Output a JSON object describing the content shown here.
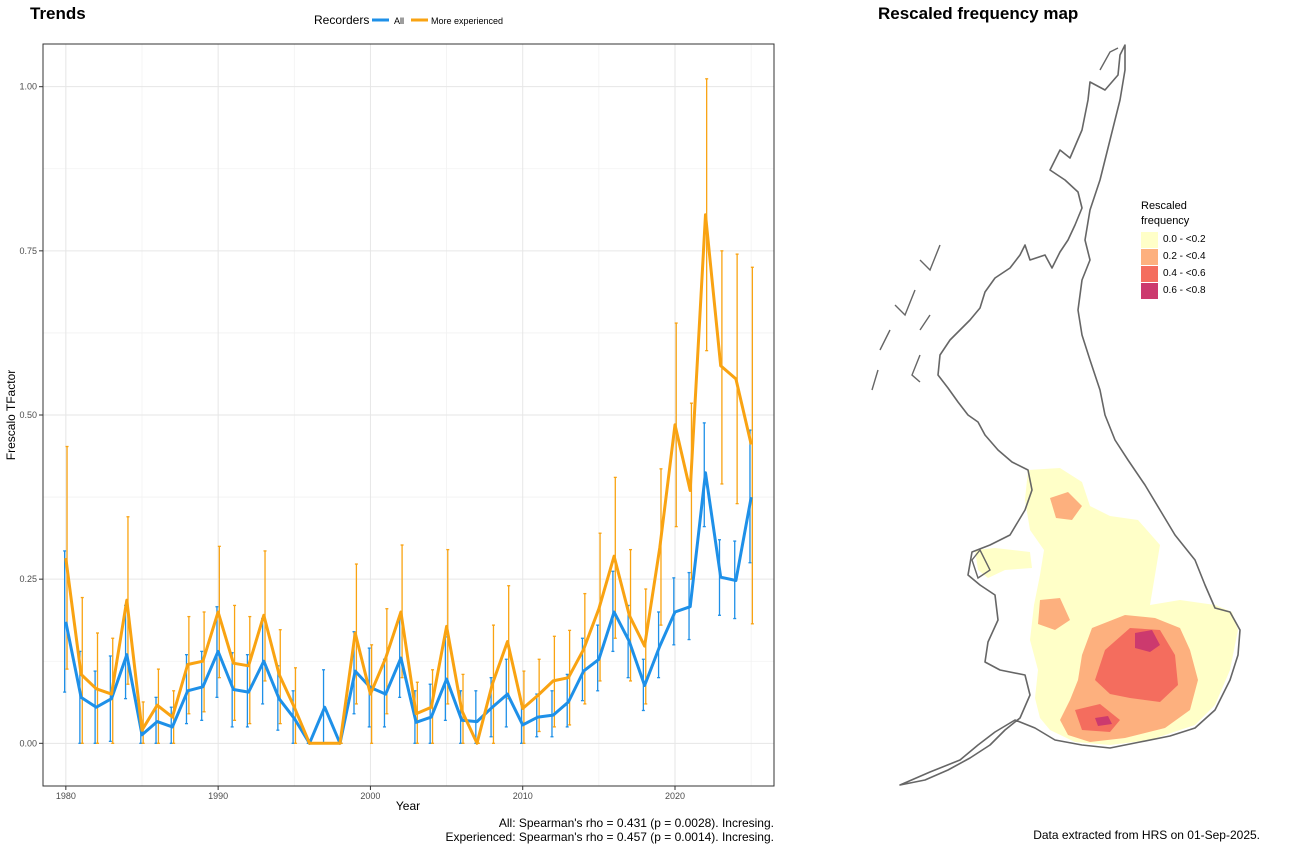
{
  "trends_panel": {
    "title": "Trends"
  },
  "map_panel": {
    "title": "Rescaled frequency map",
    "legend": {
      "title_line1": "Rescaled",
      "title_line2": "frequency",
      "items": [
        {
          "label": "0.0 - <0.2",
          "color": "#FFFFC8"
        },
        {
          "label": "0.2 - <0.4",
          "color": "#FDB07E"
        },
        {
          "label": "0.4 - <0.6",
          "color": "#F46D5E"
        },
        {
          "label": "0.6 - <0.8",
          "color": "#CC3A6E"
        }
      ]
    },
    "footer": "Data extracted from HRS on 01-Sep-2025."
  },
  "stats": {
    "all": "All: Spearman's rho = 0.431 (p = 0.0028). Incresing.",
    "experienced": "Experienced: Spearman's rho = 0.457 (p = 0.0014). Incresing."
  },
  "chart_data": {
    "type": "line",
    "title": "",
    "xlabel": "Year",
    "ylabel": "Frescalo TFactor",
    "xlim": [
      1978.5,
      2026.5
    ],
    "ylim": [
      -0.065,
      1.065
    ],
    "x_ticks": [
      1980,
      1990,
      2000,
      2010,
      2020
    ],
    "y_ticks": [
      0.0,
      0.25,
      0.5,
      0.75,
      1.0
    ],
    "y_tick_labels": [
      "0.00",
      "0.25",
      "0.50",
      "0.75",
      "1.00"
    ],
    "grid": true,
    "legend": {
      "title": "Recorders",
      "position": "top"
    },
    "x": [
      1980,
      1981,
      1982,
      1983,
      1984,
      1985,
      1986,
      1987,
      1988,
      1989,
      1990,
      1991,
      1992,
      1993,
      1994,
      1995,
      1996,
      1997,
      1998,
      1999,
      2000,
      2001,
      2002,
      2003,
      2004,
      2005,
      2006,
      2007,
      2008,
      2009,
      2010,
      2011,
      2012,
      2013,
      2014,
      2015,
      2016,
      2017,
      2018,
      2019,
      2020,
      2021,
      2022,
      2023,
      2024,
      2025
    ],
    "series": [
      {
        "name": "All",
        "color": "#1E90E8",
        "values": [
          0.185,
          0.07,
          0.055,
          0.068,
          0.135,
          0.013,
          0.033,
          0.025,
          0.08,
          0.086,
          0.14,
          0.082,
          0.078,
          0.125,
          0.068,
          0.038,
          0.0,
          0.055,
          0.0,
          0.11,
          0.085,
          0.075,
          0.13,
          0.032,
          0.04,
          0.098,
          0.035,
          0.033,
          0.055,
          0.075,
          0.028,
          0.04,
          0.043,
          0.063,
          0.11,
          0.128,
          0.2,
          0.155,
          0.088,
          0.148,
          0.2,
          0.208,
          0.412,
          0.253,
          0.248,
          0.375
        ],
        "lower": [
          0.078,
          0.0,
          0.0,
          0.003,
          0.068,
          0.0,
          0.0,
          0.0,
          0.03,
          0.035,
          0.07,
          0.025,
          0.025,
          0.06,
          0.02,
          0.0,
          0.0,
          0.0,
          0.0,
          0.045,
          0.025,
          0.025,
          0.07,
          0.0,
          0.0,
          0.035,
          0.0,
          0.0,
          0.01,
          0.025,
          0.0,
          0.01,
          0.01,
          0.025,
          0.065,
          0.08,
          0.14,
          0.1,
          0.05,
          0.1,
          0.15,
          0.158,
          0.33,
          0.195,
          0.19,
          0.275
        ],
        "upper": [
          0.293,
          0.14,
          0.11,
          0.133,
          0.21,
          0.035,
          0.07,
          0.055,
          0.135,
          0.14,
          0.208,
          0.138,
          0.135,
          0.19,
          0.118,
          0.08,
          0.0,
          0.112,
          0.0,
          0.17,
          0.145,
          0.128,
          0.19,
          0.08,
          0.09,
          0.162,
          0.08,
          0.08,
          0.1,
          0.128,
          0.06,
          0.075,
          0.08,
          0.105,
          0.16,
          0.18,
          0.262,
          0.21,
          0.128,
          0.2,
          0.252,
          0.26,
          0.488,
          0.31,
          0.308,
          0.477
        ]
      },
      {
        "name": "More experienced",
        "color": "#F9A312",
        "values": [
          0.282,
          0.105,
          0.083,
          0.075,
          0.218,
          0.02,
          0.058,
          0.04,
          0.12,
          0.125,
          0.2,
          0.122,
          0.118,
          0.195,
          0.105,
          0.055,
          0.0,
          0.0,
          0.0,
          0.168,
          0.075,
          0.13,
          0.2,
          0.045,
          0.055,
          0.178,
          0.05,
          0.0,
          0.09,
          0.155,
          0.053,
          0.073,
          0.095,
          0.1,
          0.143,
          0.205,
          0.285,
          0.195,
          0.148,
          0.298,
          0.485,
          0.385,
          0.805,
          0.575,
          0.555,
          0.455
        ],
        "lower": [
          0.113,
          0.0,
          0.0,
          0.0,
          0.09,
          0.0,
          0.0,
          0.0,
          0.045,
          0.048,
          0.1,
          0.035,
          0.03,
          0.095,
          0.03,
          0.0,
          0.0,
          0.0,
          0.0,
          0.06,
          0.0,
          0.045,
          0.1,
          0.0,
          0.0,
          0.06,
          0.0,
          0.0,
          0.0,
          0.068,
          0.0,
          0.018,
          0.025,
          0.028,
          0.06,
          0.095,
          0.16,
          0.095,
          0.06,
          0.18,
          0.33,
          0.25,
          0.598,
          0.395,
          0.365,
          0.182
        ],
        "upper": [
          0.452,
          0.222,
          0.168,
          0.16,
          0.345,
          0.063,
          0.113,
          0.08,
          0.193,
          0.2,
          0.3,
          0.21,
          0.193,
          0.293,
          0.173,
          0.115,
          0.0,
          0.0,
          0.0,
          0.273,
          0.15,
          0.205,
          0.302,
          0.093,
          0.112,
          0.295,
          0.105,
          0.0,
          0.18,
          0.24,
          0.11,
          0.128,
          0.163,
          0.172,
          0.228,
          0.32,
          0.405,
          0.295,
          0.235,
          0.418,
          0.64,
          0.518,
          1.012,
          0.75,
          0.745,
          0.725
        ]
      }
    ]
  }
}
